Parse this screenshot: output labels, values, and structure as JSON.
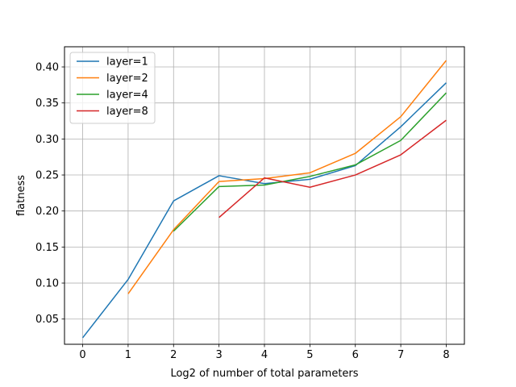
{
  "chart_data": {
    "type": "line",
    "title": "",
    "xlabel": "Log2 of number of total parameters",
    "ylabel": "flatness",
    "xlim": [
      -0.4,
      8.4
    ],
    "ylim": [
      0.015,
      0.428
    ],
    "xticks": [
      "0",
      "1",
      "2",
      "3",
      "4",
      "5",
      "6",
      "7",
      "8"
    ],
    "yticks": [
      "0.05",
      "0.10",
      "0.15",
      "0.20",
      "0.25",
      "0.30",
      "0.35",
      "0.40"
    ],
    "grid": true,
    "legend_position": "top-left",
    "series": [
      {
        "name": "layer=1",
        "color": "#1f77b4",
        "x": [
          0,
          1,
          2,
          3,
          4,
          5,
          6,
          7,
          8
        ],
        "y": [
          0.024,
          0.105,
          0.214,
          0.249,
          0.238,
          0.244,
          0.263,
          0.317,
          0.378
        ]
      },
      {
        "name": "layer=2",
        "color": "#ff7f0e",
        "x": [
          1,
          2,
          3,
          4,
          5,
          6,
          7,
          8
        ],
        "y": [
          0.085,
          0.174,
          0.241,
          0.245,
          0.253,
          0.28,
          0.331,
          0.409
        ]
      },
      {
        "name": "layer=4",
        "color": "#2ca02c",
        "x": [
          2,
          3,
          4,
          5,
          6,
          7,
          8
        ],
        "y": [
          0.172,
          0.234,
          0.236,
          0.248,
          0.264,
          0.298,
          0.364
        ]
      },
      {
        "name": "layer=8",
        "color": "#d62728",
        "x": [
          3,
          4,
          5,
          6,
          7,
          8
        ],
        "y": [
          0.191,
          0.246,
          0.233,
          0.25,
          0.278,
          0.326
        ]
      }
    ]
  }
}
